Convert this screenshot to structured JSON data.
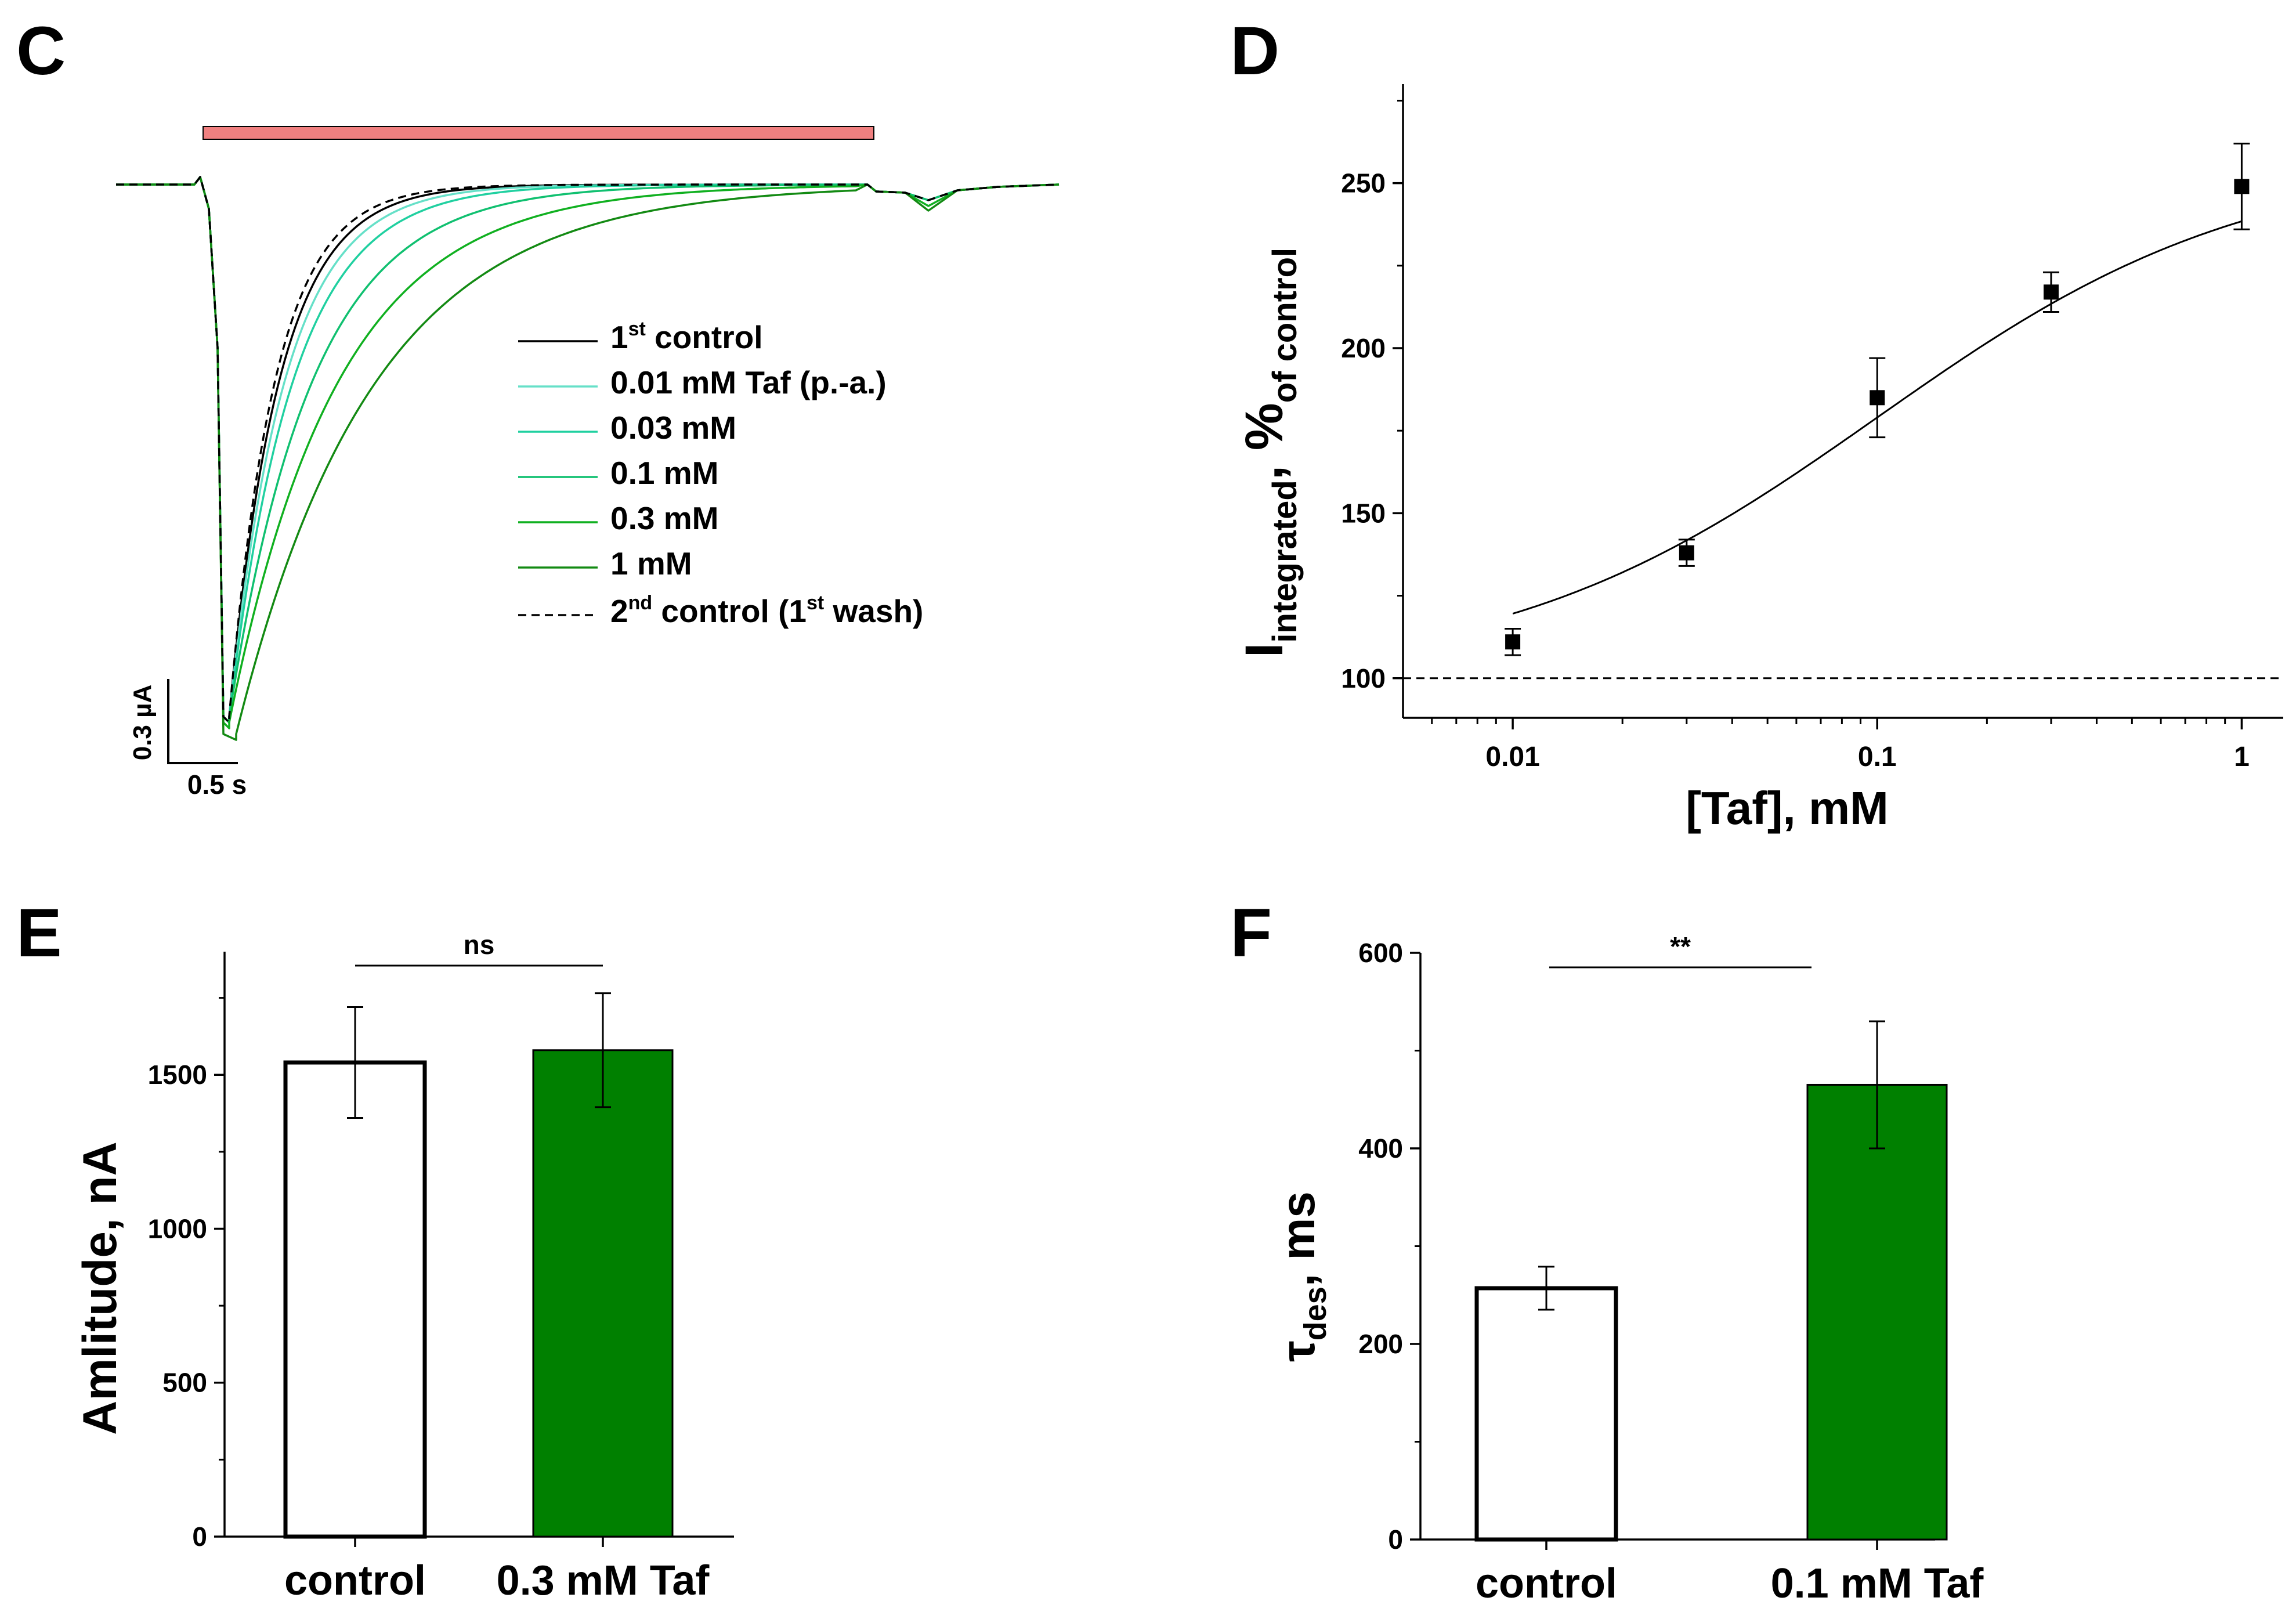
{
  "colors": {
    "bar_bar": "#f08080",
    "green_fill": "#008000",
    "black": "#000000"
  },
  "chart_data": [
    {
      "panel": "C",
      "type": "line",
      "scale_bar": {
        "y_label": "0.3 µA",
        "x_label": "0.5 s"
      },
      "series": [
        {
          "name_parts": [
            "1",
            "st",
            " control"
          ],
          "color": "#000000",
          "dash": false,
          "tau": 0.36
        },
        {
          "name_parts": [
            "0.01 mM Taf (p.-a.)"
          ],
          "color": "#66e0c8",
          "dash": false,
          "tau": 0.4
        },
        {
          "name_parts": [
            "0.03 mM"
          ],
          "color": "#20d0a0",
          "dash": false,
          "tau": 0.46
        },
        {
          "name_parts": [
            "0.1 mM"
          ],
          "color": "#10c070",
          "dash": false,
          "tau": 0.6
        },
        {
          "name_parts": [
            "0.3 mM"
          ],
          "color": "#10b020",
          "dash": false,
          "tau": 0.78
        },
        {
          "name_parts": [
            "1 mM"
          ],
          "color": "#138a13",
          "dash": false,
          "tau": 0.98
        },
        {
          "name_parts": [
            "2",
            "nd",
            " control (1",
            "st",
            " wash)"
          ],
          "color": "#000000",
          "dash": true,
          "tau": 0.33
        }
      ]
    },
    {
      "panel": "D",
      "type": "scatter",
      "xlabel": "[Taf], mM",
      "ylabel_parts": [
        "I",
        "integrated",
        ", %",
        "of control"
      ],
      "xscale": "log",
      "xlim": [
        0.005,
        1.3
      ],
      "ylim": [
        88,
        280
      ],
      "xticks": [
        0.01,
        0.1,
        1
      ],
      "xtick_labels": [
        "0.01",
        "0.1",
        "1"
      ],
      "yticks": [
        100,
        150,
        200,
        250
      ],
      "points": [
        {
          "x": 0.01,
          "y": 111,
          "err": 4
        },
        {
          "x": 0.03,
          "y": 138,
          "err": 4
        },
        {
          "x": 0.1,
          "y": 185,
          "err": 12
        },
        {
          "x": 0.3,
          "y": 217,
          "err": 6
        },
        {
          "x": 1.0,
          "y": 249,
          "err": 13
        }
      ],
      "fit": {
        "bottom": 100,
        "top": 258,
        "ec50": 0.1,
        "hill": 0.85
      },
      "reference_line": 100
    },
    {
      "panel": "E",
      "type": "bar",
      "ylabel": "Amlitude, nA",
      "ylim": [
        0,
        1900
      ],
      "yticks": [
        0,
        500,
        1000,
        1500
      ],
      "categories": [
        "control",
        "0.3 mM Taf"
      ],
      "values": [
        1540,
        1580
      ],
      "errors": [
        180,
        185
      ],
      "fills": [
        "#ffffff",
        "#008000"
      ],
      "significance": "ns"
    },
    {
      "panel": "F",
      "type": "bar",
      "ylabel_parts": [
        "τ",
        "des",
        ", ms"
      ],
      "ylim": [
        0,
        600
      ],
      "yticks": [
        0,
        200,
        400,
        600
      ],
      "categories": [
        "control",
        "0.1 mM Taf"
      ],
      "values": [
        257,
        465
      ],
      "errors": [
        22,
        65
      ],
      "fills": [
        "#ffffff",
        "#008000"
      ],
      "significance": "**"
    }
  ]
}
